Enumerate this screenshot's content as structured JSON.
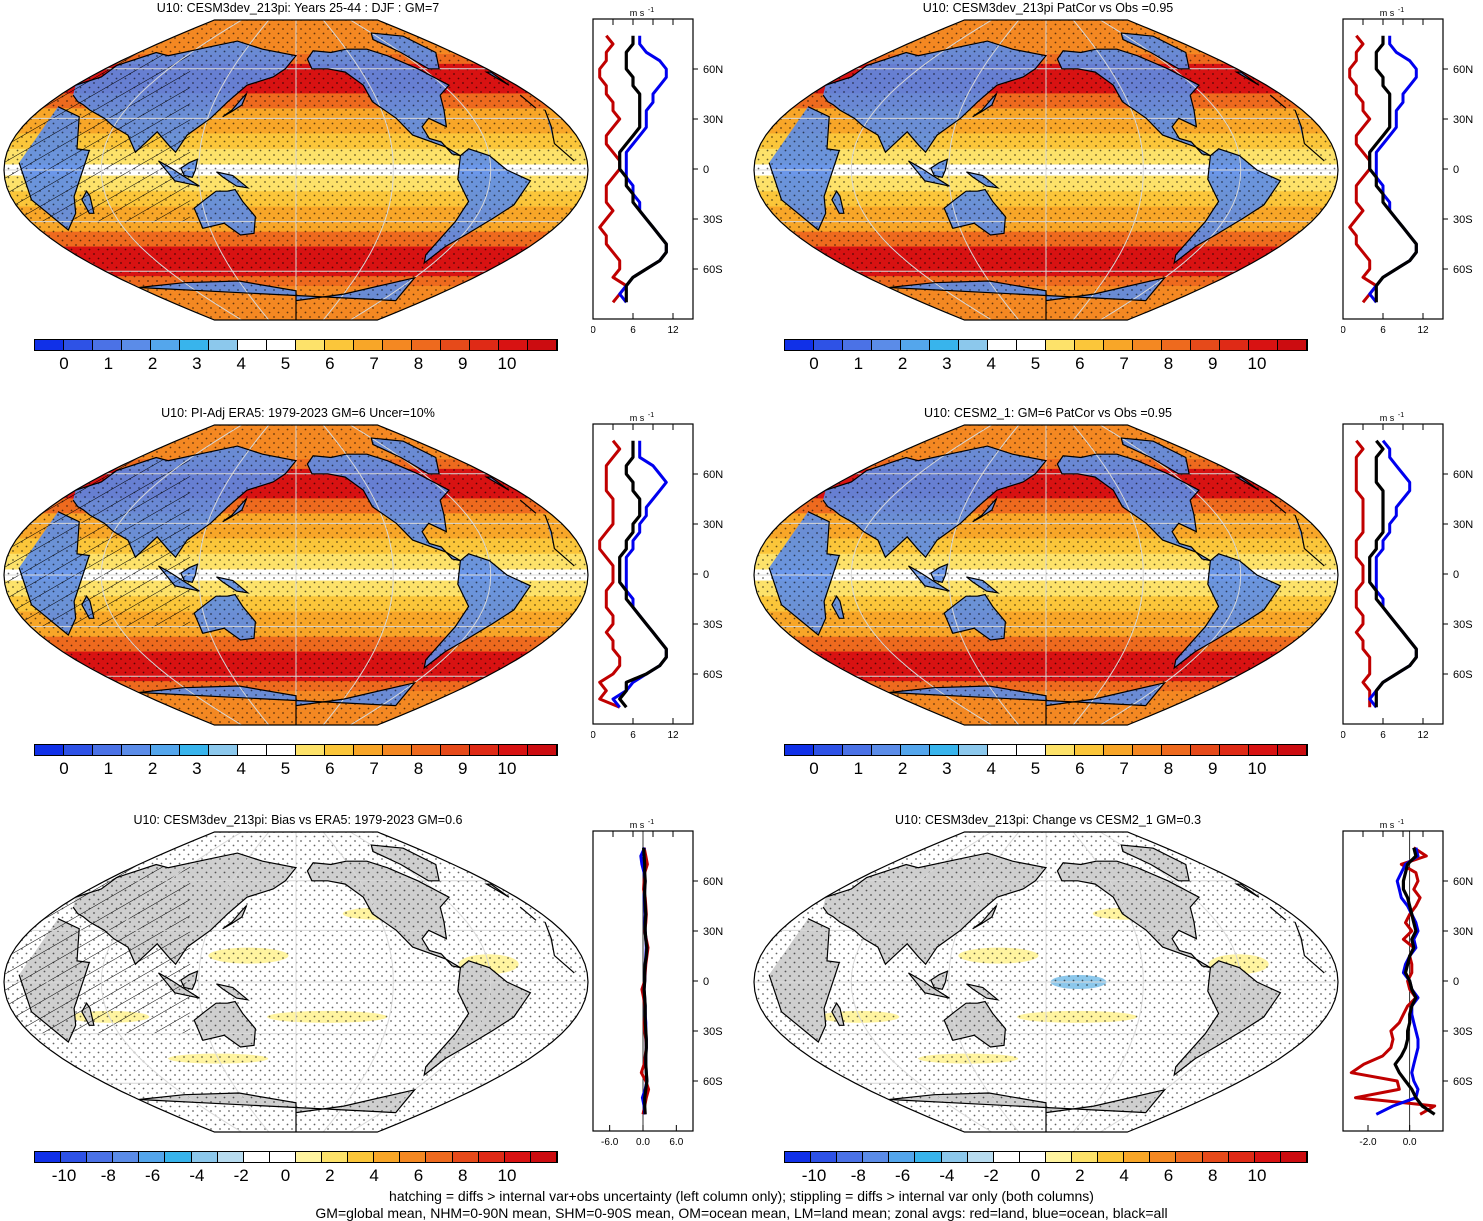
{
  "panels": [
    {
      "title": "U10: CESM3dev_213pi: Years 25-44 : DJF : GM=7",
      "kind": "field",
      "hatched": true,
      "colorbar_ticks": [
        "0",
        "1",
        "2",
        "3",
        "4",
        "5",
        "6",
        "7",
        "8",
        "9",
        "10"
      ],
      "zonal_unit": "m s",
      "zonal_unit_sup": "-1",
      "zonal_xticks": [
        "0",
        "6",
        "12"
      ],
      "zonal_xlim": [
        0,
        15
      ],
      "zonal_yticks": [
        "60N",
        "30N",
        "0",
        "30S",
        "60S"
      ]
    },
    {
      "title": "U10: CESM3dev_213pi PatCor vs Obs =0.95",
      "kind": "field",
      "hatched": false,
      "colorbar_ticks": [
        "0",
        "1",
        "2",
        "3",
        "4",
        "5",
        "6",
        "7",
        "8",
        "9",
        "10"
      ],
      "zonal_unit": "m s",
      "zonal_unit_sup": "-1",
      "zonal_xticks": [
        "0",
        "6",
        "12"
      ],
      "zonal_xlim": [
        0,
        15
      ],
      "zonal_yticks": [
        "60N",
        "30N",
        "0",
        "30S",
        "60S"
      ]
    },
    {
      "title": "U10: PI-Adj ERA5: 1979-2023 GM=6 Uncer=10%",
      "kind": "field",
      "hatched": true,
      "colorbar_ticks": [
        "0",
        "1",
        "2",
        "3",
        "4",
        "5",
        "6",
        "7",
        "8",
        "9",
        "10"
      ],
      "zonal_unit": "m s",
      "zonal_unit_sup": "-1",
      "zonal_xticks": [
        "0",
        "6",
        "12"
      ],
      "zonal_xlim": [
        0,
        15
      ],
      "zonal_yticks": [
        "60N",
        "30N",
        "0",
        "30S",
        "60S"
      ]
    },
    {
      "title": "U10: CESM2_1: GM=6 PatCor vs Obs =0.95",
      "kind": "field",
      "hatched": false,
      "colorbar_ticks": [
        "0",
        "1",
        "2",
        "3",
        "4",
        "5",
        "6",
        "7",
        "8",
        "9",
        "10"
      ],
      "zonal_unit": "m s",
      "zonal_unit_sup": "-1",
      "zonal_xticks": [
        "0",
        "6",
        "12"
      ],
      "zonal_xlim": [
        0,
        15
      ],
      "zonal_yticks": [
        "60N",
        "30N",
        "0",
        "30S",
        "60S"
      ]
    },
    {
      "title": "U10: CESM3dev_213pi: Bias vs ERA5: 1979-2023 GM=0.6",
      "kind": "diff",
      "hatched": true,
      "colorbar_ticks": [
        "-10",
        "-8",
        "-6",
        "-4",
        "-2",
        "0",
        "2",
        "4",
        "6",
        "8",
        "10"
      ],
      "zonal_unit": "m s",
      "zonal_unit_sup": "-1",
      "zonal_xticks": [
        "-6.0",
        "0.0",
        "6.0"
      ],
      "zonal_xlim": [
        -9,
        9
      ],
      "zonal_yticks": [
        "60N",
        "30N",
        "0",
        "30S",
        "60S"
      ]
    },
    {
      "title": "U10: CESM3dev_213pi: Change vs CESM2_1 GM=0.3",
      "kind": "diff",
      "hatched": false,
      "colorbar_ticks": [
        "-10",
        "-8",
        "-6",
        "-4",
        "-2",
        "0",
        "2",
        "4",
        "6",
        "8",
        "10"
      ],
      "zonal_unit": "m s",
      "zonal_unit_sup": "-1",
      "zonal_xticks": [
        "-2.0",
        "0.0"
      ],
      "zonal_xlim": [
        -3.2,
        1.6
      ],
      "zonal_yticks": [
        "60N",
        "30N",
        "0",
        "30S",
        "60S"
      ]
    }
  ],
  "colors": {
    "field_scale": [
      "#1030e8",
      "#2e52e6",
      "#4b72e6",
      "#5b8ce8",
      "#54a6ec",
      "#38b4ec",
      "#8cc8ec",
      "#ffffff",
      "#ffffff",
      "#fde26a",
      "#fbc63a",
      "#f8a628",
      "#f48822",
      "#ee6a1e",
      "#e64a1a",
      "#df2a16",
      "#d81212",
      "#cc0c10"
    ],
    "diff_scale": [
      "#1030e8",
      "#2e52e6",
      "#4b72e6",
      "#5b8ce8",
      "#54a6ec",
      "#38b4ec",
      "#8cc8ec",
      "#b8dcf0",
      "#ffffff",
      "#ffffff",
      "#fff4a0",
      "#fde26a",
      "#fbc63a",
      "#f8a628",
      "#f48822",
      "#ee6a1e",
      "#e64a1a",
      "#df2a16",
      "#d81212",
      "#cc0c10"
    ],
    "land_line": "#c00000",
    "ocean_line": "#0000ee",
    "all_line": "#000000",
    "diff_land_fill": "#cfcfcf"
  },
  "chart_data": [
    {
      "type": "line",
      "name": "zonal U10 CESM3dev_213pi DJF",
      "x_unit": "m s-1",
      "lat": [
        80,
        75,
        70,
        65,
        60,
        55,
        50,
        45,
        40,
        35,
        30,
        25,
        20,
        15,
        10,
        5,
        0,
        -5,
        -10,
        -15,
        -20,
        -25,
        -30,
        -35,
        -40,
        -45,
        -50,
        -55,
        -60,
        -65,
        -70,
        -75,
        -80
      ],
      "series": [
        {
          "values": [
            2,
            3,
            2,
            2,
            1,
            1,
            2,
            2,
            3,
            3,
            4,
            3,
            2,
            2,
            3,
            4,
            4,
            3,
            2,
            2,
            2,
            3,
            2,
            1,
            2,
            2,
            3,
            4,
            4,
            3,
            5,
            4,
            3
          ]
        },
        {
          "values": [
            7,
            7,
            8,
            10,
            11,
            11,
            10,
            9,
            9,
            8,
            8,
            8,
            7,
            6,
            5,
            5,
            5,
            5,
            6,
            6,
            7,
            7,
            8,
            9,
            10,
            11,
            11,
            10,
            8,
            6,
            5,
            4,
            5
          ]
        },
        {
          "values": [
            6,
            6,
            5,
            5,
            5,
            6,
            6,
            7,
            7,
            7,
            7,
            7,
            6,
            5,
            4,
            4,
            4,
            5,
            5,
            6,
            6,
            7,
            8,
            9,
            10,
            11,
            11,
            10,
            8,
            6,
            5,
            5,
            5
          ]
        }
      ]
    },
    {
      "type": "line",
      "name": "zonal U10 CESM3dev_213pi PatCor",
      "x_unit": "m s-1",
      "lat": [
        80,
        75,
        70,
        65,
        60,
        55,
        50,
        45,
        40,
        35,
        30,
        25,
        20,
        15,
        10,
        5,
        0,
        -5,
        -10,
        -15,
        -20,
        -25,
        -30,
        -35,
        -40,
        -45,
        -50,
        -55,
        -60,
        -65,
        -70,
        -75,
        -80
      ],
      "series": [
        {
          "values": [
            2,
            3,
            2,
            2,
            1,
            1,
            2,
            2,
            3,
            3,
            4,
            3,
            2,
            2,
            3,
            4,
            4,
            3,
            2,
            2,
            2,
            3,
            2,
            1,
            2,
            2,
            3,
            4,
            4,
            3,
            5,
            4,
            3
          ]
        },
        {
          "values": [
            7,
            7,
            8,
            10,
            11,
            11,
            10,
            9,
            9,
            8,
            8,
            8,
            7,
            6,
            5,
            5,
            5,
            5,
            6,
            6,
            7,
            7,
            8,
            9,
            10,
            11,
            11,
            10,
            8,
            6,
            5,
            4,
            5
          ]
        },
        {
          "values": [
            6,
            6,
            5,
            5,
            5,
            6,
            6,
            7,
            7,
            7,
            7,
            7,
            6,
            5,
            4,
            4,
            4,
            5,
            5,
            6,
            6,
            7,
            8,
            9,
            10,
            11,
            11,
            10,
            8,
            6,
            5,
            5,
            5
          ]
        }
      ]
    },
    {
      "type": "line",
      "name": "zonal U10 PI-Adj ERA5",
      "x_unit": "m s-1",
      "lat": [
        80,
        75,
        70,
        65,
        60,
        55,
        50,
        45,
        40,
        35,
        30,
        25,
        20,
        15,
        10,
        5,
        0,
        -5,
        -10,
        -15,
        -20,
        -25,
        -30,
        -35,
        -40,
        -45,
        -50,
        -55,
        -60,
        -65,
        -70,
        -75,
        -80
      ],
      "series": [
        {
          "values": [
            3,
            4,
            3,
            2,
            2,
            2,
            2,
            3,
            3,
            3,
            3,
            2,
            1,
            1,
            2,
            3,
            3,
            3,
            2,
            2,
            2,
            3,
            3,
            2,
            3,
            3,
            4,
            4,
            3,
            1,
            2,
            1,
            4
          ]
        },
        {
          "values": [
            7,
            7,
            7,
            9,
            10,
            11,
            10,
            9,
            8,
            8,
            7,
            7,
            6,
            6,
            5,
            5,
            5,
            5,
            5,
            6,
            6,
            7,
            8,
            9,
            10,
            11,
            11,
            10,
            8,
            6,
            5,
            3,
            4
          ]
        },
        {
          "values": [
            6,
            6,
            6,
            5,
            5,
            6,
            6,
            7,
            7,
            7,
            6,
            6,
            5,
            5,
            4,
            4,
            4,
            4,
            5,
            5,
            6,
            7,
            8,
            9,
            10,
            11,
            11,
            10,
            8,
            5,
            5,
            4,
            5
          ]
        }
      ]
    },
    {
      "type": "line",
      "name": "zonal U10 CESM2_1",
      "x_unit": "m s-1",
      "lat": [
        80,
        75,
        70,
        65,
        60,
        55,
        50,
        45,
        40,
        35,
        30,
        25,
        20,
        15,
        10,
        5,
        0,
        -5,
        -10,
        -15,
        -20,
        -25,
        -30,
        -35,
        -40,
        -45,
        -50,
        -55,
        -60,
        -65,
        -70,
        -75,
        -80
      ],
      "series": [
        {
          "values": [
            2,
            3,
            2,
            2,
            2,
            2,
            2,
            3,
            3,
            3,
            3,
            3,
            2,
            2,
            2,
            3,
            3,
            3,
            2,
            2,
            2,
            3,
            3,
            2,
            3,
            3,
            4,
            4,
            4,
            3,
            4,
            4,
            4
          ]
        },
        {
          "values": [
            6,
            7,
            7,
            8,
            9,
            10,
            10,
            9,
            8,
            8,
            7,
            7,
            6,
            6,
            5,
            5,
            5,
            5,
            5,
            6,
            6,
            7,
            8,
            9,
            10,
            11,
            11,
            10,
            8,
            6,
            5,
            4,
            5
          ]
        },
        {
          "values": [
            5,
            6,
            5,
            5,
            5,
            5,
            6,
            6,
            6,
            6,
            6,
            6,
            5,
            5,
            4,
            4,
            4,
            4,
            5,
            5,
            6,
            7,
            8,
            9,
            10,
            11,
            11,
            10,
            8,
            6,
            5,
            5,
            5
          ]
        }
      ]
    },
    {
      "type": "line",
      "name": "zonal U10 bias vs ERA5",
      "x_unit": "m s-1",
      "lat": [
        80,
        75,
        70,
        65,
        60,
        55,
        50,
        45,
        40,
        35,
        30,
        25,
        20,
        15,
        10,
        5,
        0,
        -5,
        -10,
        -15,
        -20,
        -25,
        -30,
        -35,
        -40,
        -45,
        -50,
        -55,
        -60,
        -65,
        -70,
        -75,
        -80
      ],
      "series": [
        {
          "values": [
            0.2,
            0.5,
            0.8,
            0.3,
            0.2,
            0.1,
            0.4,
            0.5,
            0.6,
            0.5,
            0.3,
            0.6,
            0.9,
            0.7,
            0.5,
            0.4,
            0.3,
            -0.2,
            0.1,
            0.3,
            0.4,
            0.2,
            0.3,
            0.5,
            0.6,
            0.4,
            0.2,
            -0.3,
            0.5,
            1.0,
            0.6,
            0.3,
            0.0
          ]
        },
        {
          "values": [
            0.3,
            -0.4,
            -0.2,
            0.2,
            0.4,
            0.3,
            0.2,
            0.3,
            0.4,
            0.3,
            0.4,
            0.5,
            0.6,
            0.5,
            0.4,
            0.3,
            0.3,
            0.2,
            0.3,
            0.4,
            0.4,
            0.5,
            0.5,
            0.6,
            0.6,
            0.5,
            0.5,
            0.6,
            0.7,
            0.4,
            -0.1,
            0.2,
            0.3
          ]
        },
        {
          "values": [
            0.1,
            0.2,
            0.3,
            0.3,
            0.4,
            0.3,
            0.3,
            0.4,
            0.5,
            0.4,
            0.4,
            0.5,
            0.7,
            0.6,
            0.4,
            0.3,
            0.3,
            0.2,
            0.3,
            0.4,
            0.4,
            0.4,
            0.5,
            0.6,
            0.6,
            0.5,
            0.5,
            0.6,
            0.7,
            0.5,
            0.3,
            0.3,
            0.4
          ]
        }
      ]
    },
    {
      "type": "line",
      "name": "zonal U10 change vs CESM2_1",
      "x_unit": "m s-1",
      "lat": [
        80,
        75,
        70,
        65,
        60,
        55,
        50,
        45,
        40,
        35,
        30,
        25,
        20,
        15,
        10,
        5,
        0,
        -5,
        -10,
        -15,
        -20,
        -25,
        -30,
        -35,
        -40,
        -45,
        -50,
        -55,
        -60,
        -65,
        -70,
        -75,
        -80
      ],
      "series": [
        {
          "values": [
            0.2,
            0.8,
            -0.4,
            0.3,
            0.4,
            0.2,
            0.5,
            0.3,
            0.0,
            -0.2,
            0.1,
            -0.3,
            0.2,
            0.0,
            0.1,
            0.1,
            -0.1,
            0.0,
            0.3,
            -0.1,
            -0.3,
            -0.5,
            -0.9,
            -0.8,
            -0.9,
            -1.3,
            -2.2,
            -2.8,
            -0.6,
            -0.5,
            -2.6,
            1.2,
            0.5
          ]
        },
        {
          "values": [
            0.3,
            0.4,
            -0.2,
            -0.4,
            -0.6,
            -0.5,
            -0.4,
            -0.1,
            0.1,
            0.3,
            0.4,
            0.2,
            0.3,
            0.0,
            -0.2,
            -0.3,
            0.0,
            0.1,
            0.4,
            0.1,
            0.1,
            0.2,
            0.3,
            0.4,
            0.4,
            0.3,
            0.2,
            0.1,
            0.2,
            0.4,
            0.3,
            -0.8,
            -1.6
          ]
        },
        {
          "values": [
            0.2,
            0.3,
            -0.1,
            -0.2,
            -0.3,
            -0.3,
            -0.1,
            0.0,
            0.1,
            0.2,
            0.3,
            0.1,
            0.2,
            0.0,
            -0.1,
            -0.2,
            0.0,
            0.1,
            0.3,
            0.1,
            0.0,
            0.0,
            -0.1,
            -0.1,
            -0.2,
            -0.4,
            -0.7,
            -0.5,
            -0.2,
            0.1,
            0.3,
            0.6,
            1.2
          ]
        }
      ]
    }
  ],
  "footer": {
    "line1": "hatching = diffs > internal var+obs uncertainty (left column only); stippling = diffs > internal var only (both columns)",
    "line2": "GM=global mean, NHM=0-90N mean, SHM=0-90S mean, OM=ocean mean, LM=land mean; zonal avgs: red=land, blue=ocean, black=all"
  }
}
